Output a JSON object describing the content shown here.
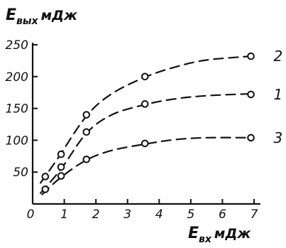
{
  "chart_data": {
    "type": "line",
    "y_title": {
      "main": "E",
      "sub": "вых",
      "unit": "мДж"
    },
    "x_title": {
      "main": "E",
      "sub": "вх",
      "unit": "мДж"
    },
    "xlim": [
      0,
      7.2
    ],
    "ylim": [
      0,
      250
    ],
    "x_ticks": [
      0,
      1,
      2,
      3,
      4,
      5,
      6,
      7
    ],
    "x_tick_labels": [
      "0",
      "1",
      "2",
      "3",
      "4",
      "5",
      "6",
      "7"
    ],
    "y_ticks": [
      50,
      100,
      150,
      200,
      250
    ],
    "y_tick_labels": [
      "50",
      "100",
      "150",
      "200",
      "250"
    ],
    "grid": false,
    "line_style": "dashed",
    "series": [
      {
        "name": "2",
        "points": [
          [
            0.4,
            43
          ],
          [
            0.9,
            78
          ],
          [
            1.7,
            140
          ],
          [
            3.55,
            200
          ],
          [
            6.9,
            232
          ]
        ],
        "curve": [
          [
            0.25,
            33
          ],
          [
            0.8,
            72
          ],
          [
            1.7,
            138
          ],
          [
            2.5,
            173
          ],
          [
            3.55,
            199
          ],
          [
            4.5,
            215
          ],
          [
            5.5,
            226
          ],
          [
            6.9,
            232
          ]
        ]
      },
      {
        "name": "1",
        "points": [
          [
            0.9,
            58
          ],
          [
            1.7,
            113
          ],
          [
            3.55,
            157
          ],
          [
            6.9,
            172
          ]
        ],
        "curve": [
          [
            0.25,
            17
          ],
          [
            0.9,
            55
          ],
          [
            1.7,
            111
          ],
          [
            2.5,
            140
          ],
          [
            3.55,
            156
          ],
          [
            4.5,
            165
          ],
          [
            5.5,
            170
          ],
          [
            6.9,
            173
          ]
        ]
      },
      {
        "name": "3",
        "points": [
          [
            0.4,
            23
          ],
          [
            0.9,
            44
          ],
          [
            1.7,
            70
          ],
          [
            3.55,
            95
          ],
          [
            6.9,
            104
          ]
        ],
        "curve": [
          [
            0.3,
            15
          ],
          [
            0.9,
            42
          ],
          [
            1.7,
            69
          ],
          [
            2.5,
            84
          ],
          [
            3.55,
            94
          ],
          [
            4.5,
            101
          ],
          [
            5.5,
            104
          ],
          [
            6.9,
            104
          ]
        ]
      }
    ]
  }
}
